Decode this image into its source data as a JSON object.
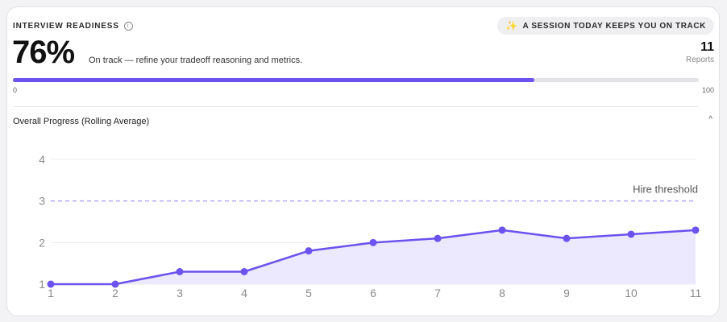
{
  "readiness": {
    "label": "INTERVIEW READINESS",
    "tip": "A SESSION TODAY KEEPS YOU ON TRACK",
    "percent": "76%",
    "progress": 0.76,
    "status": "On track — refine your tradeoff reasoning and metrics.",
    "reports_count": "11",
    "reports_label": "Reports",
    "bar_min": "0",
    "bar_max": "100"
  },
  "section": {
    "title": "Overall Progress (Rolling Average)"
  },
  "colors": {
    "accent": "#6c52ee",
    "area": "#ece8fd",
    "threshold": "#b4a8f2"
  },
  "icons": {
    "info": "info-icon",
    "sparkle": "sparkle-icon",
    "collapse": "chevron-up-icon"
  },
  "chart_data": {
    "type": "area",
    "x": [
      1,
      2,
      3,
      4,
      5,
      6,
      7,
      8,
      9,
      10,
      11
    ],
    "series": [
      {
        "values": [
          1,
          1,
          1.3,
          1.3,
          1.8,
          2.0,
          2.1,
          2.3,
          2.1,
          2.2,
          2.3
        ]
      }
    ],
    "y_ticks": [
      "1",
      "2",
      "3",
      "4"
    ],
    "x_ticks": [
      "1",
      "2",
      "3",
      "4",
      "5",
      "6",
      "7",
      "8",
      "9",
      "10",
      "11"
    ],
    "ylim": [
      1,
      4
    ],
    "xlim": [
      1,
      11
    ],
    "threshold": {
      "value": 3,
      "label": "Hire threshold"
    },
    "grid": true
  }
}
